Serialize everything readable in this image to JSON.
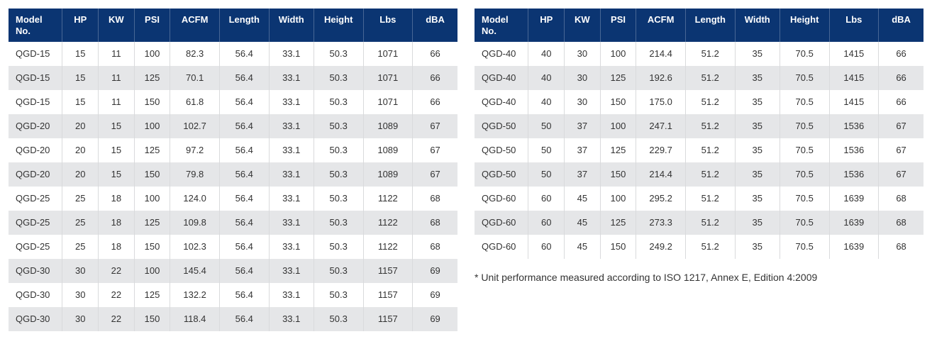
{
  "colors": {
    "header_bg": "#0b3572",
    "header_fg": "#ffffff",
    "row_even_bg": "#e5e6e8",
    "row_odd_bg": "#ffffff",
    "cell_border": "#d9dadc",
    "text": "#333333"
  },
  "columns": [
    {
      "key": "model",
      "label": "Model No.",
      "align": "left",
      "cls": "col-model"
    },
    {
      "key": "hp",
      "label": "HP",
      "align": "center",
      "cls": "col-hp"
    },
    {
      "key": "kw",
      "label": "KW",
      "align": "center",
      "cls": "col-kw"
    },
    {
      "key": "psi",
      "label": "PSI",
      "align": "center",
      "cls": "col-psi"
    },
    {
      "key": "acfm",
      "label": "ACFM",
      "align": "center",
      "cls": "col-acfm"
    },
    {
      "key": "length",
      "label": "Length",
      "align": "center",
      "cls": "col-len"
    },
    {
      "key": "width",
      "label": "Width",
      "align": "center",
      "cls": "col-wid"
    },
    {
      "key": "height",
      "label": "Height",
      "align": "center",
      "cls": "col-hgt"
    },
    {
      "key": "lbs",
      "label": "Lbs",
      "align": "center",
      "cls": "col-lbs"
    },
    {
      "key": "dba",
      "label": "dBA",
      "align": "center",
      "cls": "col-dba"
    }
  ],
  "left_table": {
    "rows": [
      {
        "model": "QGD-15",
        "hp": "15",
        "kw": "11",
        "psi": "100",
        "acfm": "82.3",
        "length": "56.4",
        "width": "33.1",
        "height": "50.3",
        "lbs": "1071",
        "dba": "66"
      },
      {
        "model": "QGD-15",
        "hp": "15",
        "kw": "11",
        "psi": "125",
        "acfm": "70.1",
        "length": "56.4",
        "width": "33.1",
        "height": "50.3",
        "lbs": "1071",
        "dba": "66"
      },
      {
        "model": "QGD-15",
        "hp": "15",
        "kw": "11",
        "psi": "150",
        "acfm": "61.8",
        "length": "56.4",
        "width": "33.1",
        "height": "50.3",
        "lbs": "1071",
        "dba": "66"
      },
      {
        "model": "QGD-20",
        "hp": "20",
        "kw": "15",
        "psi": "100",
        "acfm": "102.7",
        "length": "56.4",
        "width": "33.1",
        "height": "50.3",
        "lbs": "1089",
        "dba": "67"
      },
      {
        "model": "QGD-20",
        "hp": "20",
        "kw": "15",
        "psi": "125",
        "acfm": "97.2",
        "length": "56.4",
        "width": "33.1",
        "height": "50.3",
        "lbs": "1089",
        "dba": "67"
      },
      {
        "model": "QGD-20",
        "hp": "20",
        "kw": "15",
        "psi": "150",
        "acfm": "79.8",
        "length": "56.4",
        "width": "33.1",
        "height": "50.3",
        "lbs": "1089",
        "dba": "67"
      },
      {
        "model": "QGD-25",
        "hp": "25",
        "kw": "18",
        "psi": "100",
        "acfm": "124.0",
        "length": "56.4",
        "width": "33.1",
        "height": "50.3",
        "lbs": "1122",
        "dba": "68"
      },
      {
        "model": "QGD-25",
        "hp": "25",
        "kw": "18",
        "psi": "125",
        "acfm": "109.8",
        "length": "56.4",
        "width": "33.1",
        "height": "50.3",
        "lbs": "1122",
        "dba": "68"
      },
      {
        "model": "QGD-25",
        "hp": "25",
        "kw": "18",
        "psi": "150",
        "acfm": "102.3",
        "length": "56.4",
        "width": "33.1",
        "height": "50.3",
        "lbs": "1122",
        "dba": "68"
      },
      {
        "model": "QGD-30",
        "hp": "30",
        "kw": "22",
        "psi": "100",
        "acfm": "145.4",
        "length": "56.4",
        "width": "33.1",
        "height": "50.3",
        "lbs": "1157",
        "dba": "69"
      },
      {
        "model": "QGD-30",
        "hp": "30",
        "kw": "22",
        "psi": "125",
        "acfm": "132.2",
        "length": "56.4",
        "width": "33.1",
        "height": "50.3",
        "lbs": "1157",
        "dba": "69"
      },
      {
        "model": "QGD-30",
        "hp": "30",
        "kw": "22",
        "psi": "150",
        "acfm": "118.4",
        "length": "56.4",
        "width": "33.1",
        "height": "50.3",
        "lbs": "1157",
        "dba": "69"
      }
    ]
  },
  "right_table": {
    "rows": [
      {
        "model": "QGD-40",
        "hp": "40",
        "kw": "30",
        "psi": "100",
        "acfm": "214.4",
        "length": "51.2",
        "width": "35",
        "height": "70.5",
        "lbs": "1415",
        "dba": "66"
      },
      {
        "model": "QGD-40",
        "hp": "40",
        "kw": "30",
        "psi": "125",
        "acfm": "192.6",
        "length": "51.2",
        "width": "35",
        "height": "70.5",
        "lbs": "1415",
        "dba": "66"
      },
      {
        "model": "QGD-40",
        "hp": "40",
        "kw": "30",
        "psi": "150",
        "acfm": "175.0",
        "length": "51.2",
        "width": "35",
        "height": "70.5",
        "lbs": "1415",
        "dba": "66"
      },
      {
        "model": "QGD-50",
        "hp": "50",
        "kw": "37",
        "psi": "100",
        "acfm": "247.1",
        "length": "51.2",
        "width": "35",
        "height": "70.5",
        "lbs": "1536",
        "dba": "67"
      },
      {
        "model": "QGD-50",
        "hp": "50",
        "kw": "37",
        "psi": "125",
        "acfm": "229.7",
        "length": "51.2",
        "width": "35",
        "height": "70.5",
        "lbs": "1536",
        "dba": "67"
      },
      {
        "model": "QGD-50",
        "hp": "50",
        "kw": "37",
        "psi": "150",
        "acfm": "214.4",
        "length": "51.2",
        "width": "35",
        "height": "70.5",
        "lbs": "1536",
        "dba": "67"
      },
      {
        "model": "QGD-60",
        "hp": "60",
        "kw": "45",
        "psi": "100",
        "acfm": "295.2",
        "length": "51.2",
        "width": "35",
        "height": "70.5",
        "lbs": "1639",
        "dba": "68"
      },
      {
        "model": "QGD-60",
        "hp": "60",
        "kw": "45",
        "psi": "125",
        "acfm": "273.3",
        "length": "51.2",
        "width": "35",
        "height": "70.5",
        "lbs": "1639",
        "dba": "68"
      },
      {
        "model": "QGD-60",
        "hp": "60",
        "kw": "45",
        "psi": "150",
        "acfm": "249.2",
        "length": "51.2",
        "width": "35",
        "height": "70.5",
        "lbs": "1639",
        "dba": "68"
      }
    ]
  },
  "footnote": "* Unit performance measured according to ISO 1217, Annex E, Edition 4:2009"
}
